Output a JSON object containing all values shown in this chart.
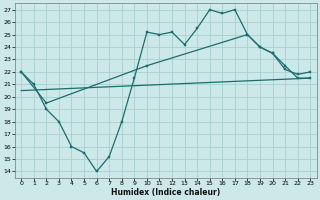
{
  "xlabel": "Humidex (Indice chaleur)",
  "bg_color": "#cce8e8",
  "grid_color": "#aacfcf",
  "line_color": "#1a6e6e",
  "ylim": [
    13.5,
    27.5
  ],
  "xlim": [
    -0.5,
    23.5
  ],
  "yticks": [
    14,
    15,
    16,
    17,
    18,
    19,
    20,
    21,
    22,
    23,
    24,
    25,
    26,
    27
  ],
  "xticks": [
    0,
    1,
    2,
    3,
    4,
    5,
    6,
    7,
    8,
    9,
    10,
    11,
    12,
    13,
    14,
    15,
    16,
    17,
    18,
    19,
    20,
    21,
    22,
    23
  ],
  "line1_x": [
    0,
    1,
    2,
    3,
    4,
    5,
    6,
    7,
    8,
    9,
    10,
    11,
    12,
    13,
    14,
    15,
    16,
    17,
    18,
    19,
    20,
    21,
    22,
    23
  ],
  "line1_y": [
    22.0,
    21.0,
    19.0,
    18.0,
    16.0,
    15.5,
    14.0,
    15.2,
    18.0,
    21.5,
    25.2,
    25.0,
    25.2,
    24.2,
    25.5,
    27.0,
    26.7,
    27.0,
    25.0,
    24.0,
    23.5,
    22.5,
    21.5,
    21.5
  ],
  "line2_x": [
    0,
    2,
    10,
    18,
    19,
    20,
    21,
    22,
    23
  ],
  "line2_y": [
    22.0,
    19.5,
    22.5,
    25.0,
    24.0,
    23.5,
    22.2,
    21.8,
    22.0
  ],
  "line3_x": [
    0,
    23
  ],
  "line3_y": [
    20.5,
    21.5
  ]
}
